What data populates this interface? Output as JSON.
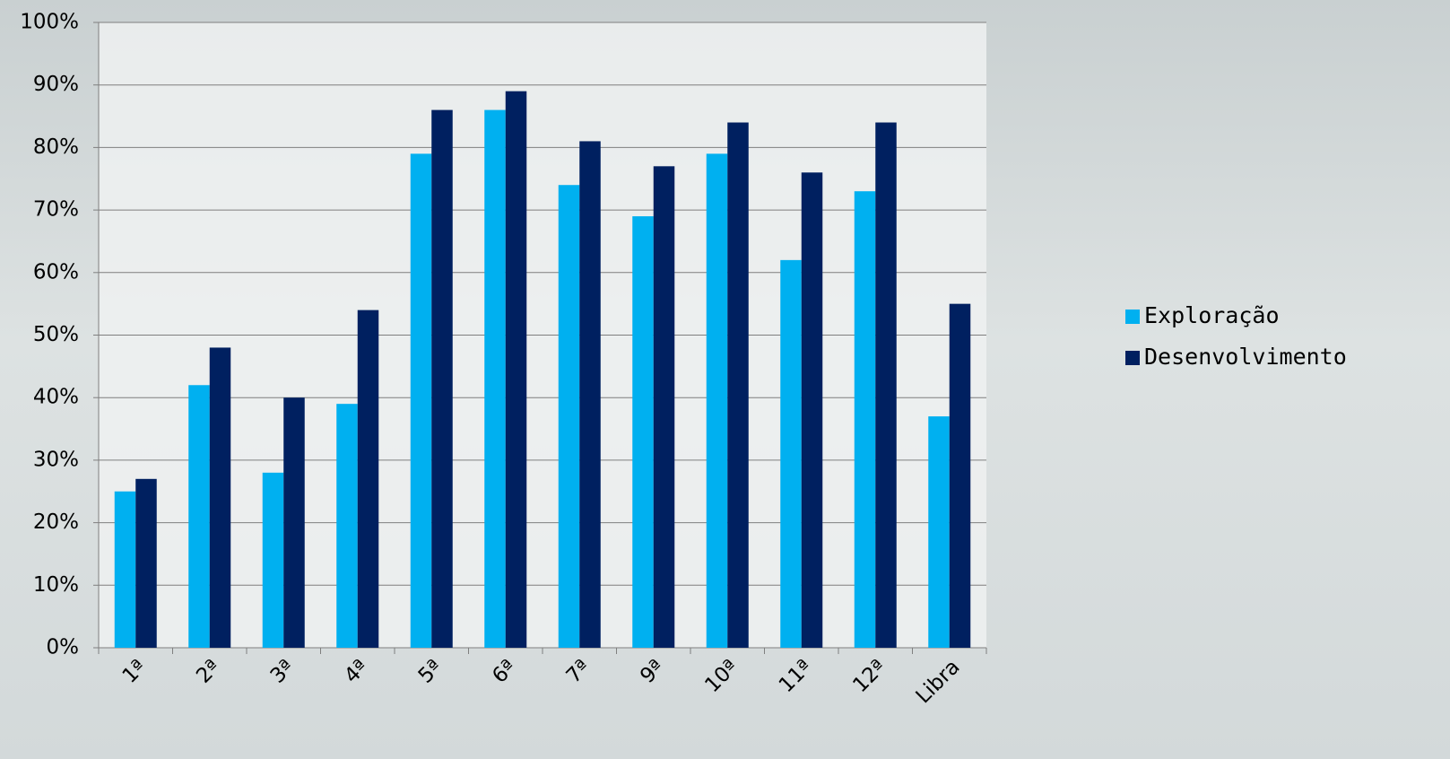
{
  "chart_data": {
    "type": "bar",
    "categories": [
      "1ª",
      "2ª",
      "3ª",
      "4ª",
      "5ª",
      "6ª",
      "7ª",
      "9ª",
      "10ª",
      "11ª",
      "12ª",
      "Libra"
    ],
    "series": [
      {
        "name": "Exploração",
        "color": "#00b0f0",
        "values": [
          25,
          42,
          28,
          39,
          79,
          86,
          74,
          69,
          79,
          62,
          73,
          37
        ]
      },
      {
        "name": "Desenvolvimento",
        "color": "#002060",
        "values": [
          27,
          48,
          40,
          54,
          86,
          89,
          81,
          77,
          84,
          76,
          84,
          55
        ]
      }
    ],
    "ylim": [
      0,
      100
    ],
    "yticks": [
      {
        "value": 0,
        "label": "0%"
      },
      {
        "value": 10,
        "label": "10%"
      },
      {
        "value": 20,
        "label": "20%"
      },
      {
        "value": 30,
        "label": "30%"
      },
      {
        "value": 40,
        "label": "40%"
      },
      {
        "value": 50,
        "label": "50%"
      },
      {
        "value": 60,
        "label": "60%"
      },
      {
        "value": 70,
        "label": "70%"
      },
      {
        "value": 80,
        "label": "80%"
      },
      {
        "value": 90,
        "label": "90%"
      },
      {
        "value": 100,
        "label": "100%"
      }
    ],
    "grid": true,
    "legend": "right"
  }
}
